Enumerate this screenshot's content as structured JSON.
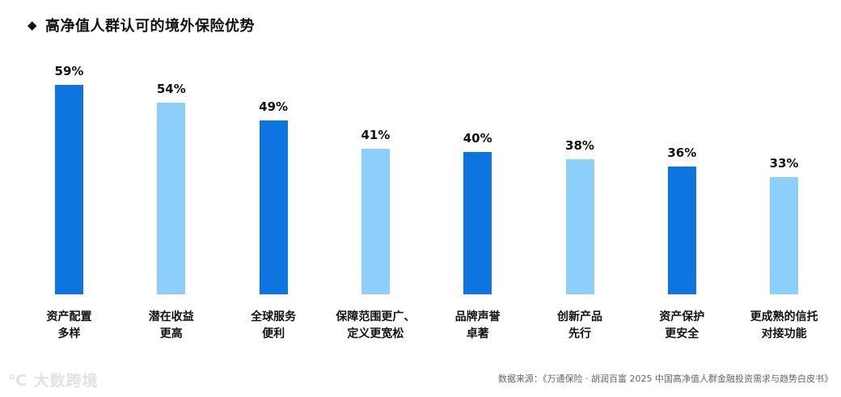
{
  "title": "高净值人群认可的境外保险优势",
  "title_marker": "◆",
  "source": "数据来源：《万通保险 · 胡润百富 2025 中国高净值人群金融投资需求与趋势白皮书》",
  "watermark": "℃ 大数跨境",
  "colors": {
    "dark": "#0E74E0",
    "light": "#8DCFFB"
  },
  "chart_data": {
    "type": "bar",
    "title": "高净值人群认可的境外保险优势",
    "categories": [
      "资产配置多样",
      "潜在收益更高",
      "全球服务便利",
      "保障范围更广、定义更宽松",
      "品牌声誉卓著",
      "创新产品先行",
      "资产保护更安全",
      "更成熟的信托对接功能"
    ],
    "values": [
      59,
      54,
      49,
      41,
      40,
      38,
      36,
      33
    ],
    "unit": "%",
    "xlabel": "",
    "ylabel": "",
    "ylim": [
      0,
      60
    ],
    "grid": false,
    "legend": null,
    "bar_colors": [
      "#0E74E0",
      "#8DCFFB",
      "#0E74E0",
      "#8DCFFB",
      "#0E74E0",
      "#8DCFFB",
      "#0E74E0",
      "#8DCFFB"
    ]
  },
  "bars": [
    {
      "label_line1": "资产配置",
      "label_line2": "多样",
      "value_label": "59%"
    },
    {
      "label_line1": "潜在收益",
      "label_line2": "更高",
      "value_label": "54%"
    },
    {
      "label_line1": "全球服务",
      "label_line2": "便利",
      "value_label": "49%"
    },
    {
      "label_line1": "保障范围更广、",
      "label_line2": "定义更宽松",
      "value_label": "41%"
    },
    {
      "label_line1": "品牌声誉",
      "label_line2": "卓著",
      "value_label": "40%"
    },
    {
      "label_line1": "创新产品",
      "label_line2": "先行",
      "value_label": "38%"
    },
    {
      "label_line1": "资产保护",
      "label_line2": "更安全",
      "value_label": "36%"
    },
    {
      "label_line1": "更成熟的信托",
      "label_line2": "对接功能",
      "value_label": "33%"
    }
  ]
}
